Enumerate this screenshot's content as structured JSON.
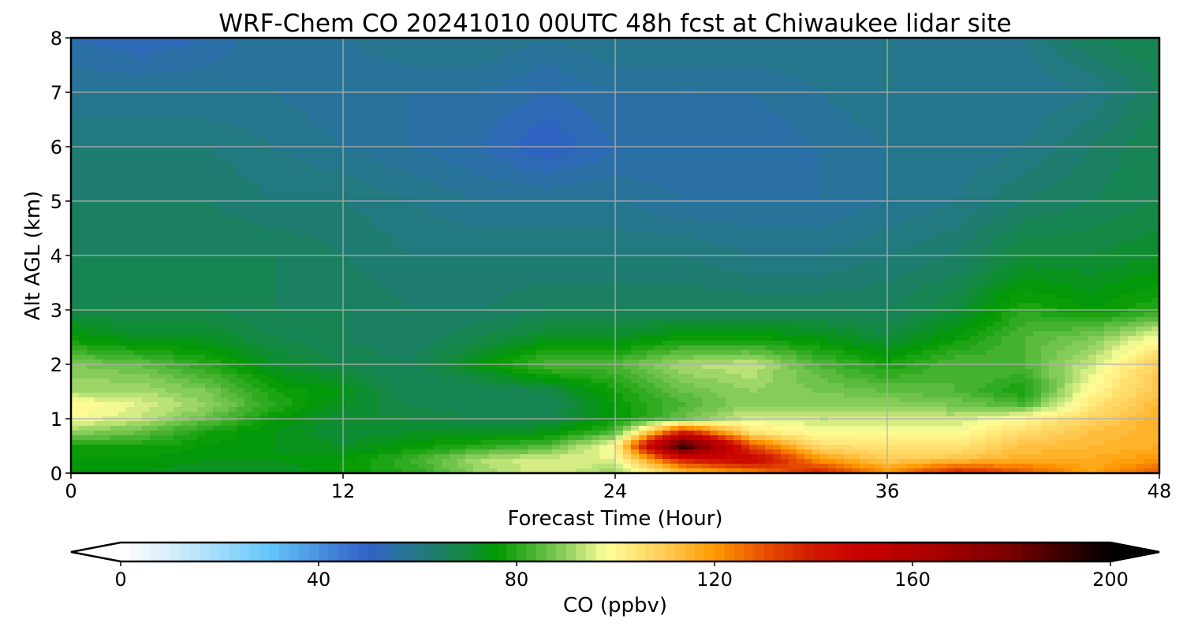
{
  "chart_data": {
    "type": "heatmap",
    "title": "WRF-Chem CO  20241010 00UTC 48h fcst at Chiwaukee lidar site",
    "xlabel": "Forecast Time (Hour)",
    "ylabel": "Alt AGL (km)",
    "xlim": [
      0,
      48
    ],
    "ylim": [
      0,
      8
    ],
    "xticks": [
      "0",
      "12",
      "24",
      "36",
      "48"
    ],
    "yticks": [
      "0",
      "1",
      "2",
      "3",
      "4",
      "5",
      "6",
      "7",
      "8"
    ],
    "grid": true,
    "x": [
      0,
      3,
      6,
      9,
      12,
      15,
      18,
      21,
      24,
      27,
      30,
      33,
      36,
      39,
      42,
      45,
      48
    ],
    "y": [
      0,
      0.25,
      0.5,
      0.75,
      1.0,
      1.25,
      1.5,
      2.0,
      2.5,
      3,
      4,
      5,
      6,
      7,
      8
    ],
    "z_by_x": [
      [
        74,
        76,
        78,
        90,
        98,
        100,
        92,
        88,
        76,
        68,
        66,
        64,
        62,
        58,
        54
      ],
      [
        74,
        76,
        78,
        86,
        94,
        96,
        92,
        86,
        72,
        68,
        66,
        64,
        62,
        58,
        52
      ],
      [
        72,
        74,
        76,
        78,
        86,
        90,
        88,
        80,
        72,
        68,
        66,
        64,
        62,
        58,
        54
      ],
      [
        72,
        74,
        74,
        74,
        76,
        80,
        78,
        72,
        68,
        66,
        66,
        62,
        60,
        58,
        58
      ],
      [
        76,
        76,
        72,
        70,
        70,
        72,
        74,
        68,
        66,
        66,
        64,
        62,
        58,
        56,
        58
      ],
      [
        80,
        82,
        76,
        72,
        70,
        68,
        66,
        66,
        64,
        64,
        62,
        60,
        56,
        56,
        60
      ],
      [
        90,
        92,
        80,
        72,
        68,
        66,
        66,
        74,
        68,
        64,
        62,
        58,
        54,
        56,
        60
      ],
      [
        96,
        96,
        84,
        74,
        68,
        66,
        68,
        84,
        72,
        66,
        62,
        58,
        50,
        54,
        58
      ],
      [
        90,
        96,
        100,
        84,
        76,
        76,
        78,
        84,
        72,
        66,
        62,
        58,
        54,
        56,
        60
      ],
      [
        110,
        140,
        198,
        140,
        86,
        84,
        86,
        92,
        76,
        66,
        62,
        56,
        54,
        56,
        60
      ],
      [
        120,
        150,
        130,
        104,
        96,
        90,
        90,
        94,
        76,
        66,
        60,
        56,
        54,
        56,
        60
      ],
      [
        140,
        120,
        106,
        98,
        94,
        90,
        88,
        84,
        74,
        66,
        60,
        56,
        56,
        58,
        60
      ],
      [
        120,
        110,
        104,
        98,
        94,
        90,
        86,
        78,
        70,
        66,
        62,
        58,
        58,
        60,
        60
      ],
      [
        140,
        112,
        104,
        98,
        94,
        88,
        84,
        84,
        76,
        70,
        64,
        60,
        58,
        58,
        60
      ],
      [
        130,
        116,
        112,
        106,
        100,
        84,
        78,
        84,
        84,
        80,
        70,
        64,
        60,
        58,
        60
      ],
      [
        118,
        116,
        114,
        112,
        108,
        104,
        100,
        94,
        88,
        76,
        70,
        66,
        64,
        60,
        66
      ],
      [
        130,
        120,
        116,
        116,
        116,
        114,
        112,
        110,
        98,
        80,
        72,
        68,
        68,
        66,
        68
      ]
    ],
    "colorbar": {
      "label": "CO  (ppbv)",
      "range": [
        0,
        200
      ],
      "step": 2,
      "extend": "both",
      "ticks": [
        "0",
        "40",
        "80",
        "120",
        "160",
        "200"
      ],
      "anchors": [
        {
          "v": 0,
          "c": "#ffffff"
        },
        {
          "v": 10,
          "c": "#d6eefb"
        },
        {
          "v": 20,
          "c": "#a0dcfc"
        },
        {
          "v": 30,
          "c": "#63c6fc"
        },
        {
          "v": 40,
          "c": "#4a92e0"
        },
        {
          "v": 50,
          "c": "#3060c8"
        },
        {
          "v": 56,
          "c": "#2a72a0"
        },
        {
          "v": 62,
          "c": "#207a78"
        },
        {
          "v": 70,
          "c": "#128a3c"
        },
        {
          "v": 76,
          "c": "#009900"
        },
        {
          "v": 82,
          "c": "#3aae28"
        },
        {
          "v": 90,
          "c": "#90d060"
        },
        {
          "v": 98,
          "c": "#ffff99"
        },
        {
          "v": 110,
          "c": "#ffcc55"
        },
        {
          "v": 120,
          "c": "#ff9900"
        },
        {
          "v": 130,
          "c": "#e85000"
        },
        {
          "v": 140,
          "c": "#d01800"
        },
        {
          "v": 150,
          "c": "#c80000"
        },
        {
          "v": 165,
          "c": "#a80000"
        },
        {
          "v": 180,
          "c": "#780000"
        },
        {
          "v": 200,
          "c": "#000000"
        }
      ]
    }
  }
}
